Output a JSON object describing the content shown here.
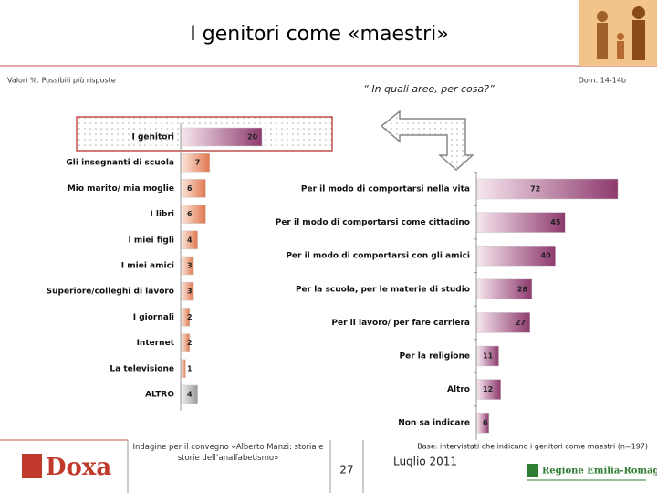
{
  "header": {
    "title": "I genitori come «maestri»",
    "note": "Valori %. Possibili più risposte",
    "question": "“ In quali aree, per cosa?”",
    "ref": "Dom. 14-14b"
  },
  "chart_data": [
    {
      "type": "bar",
      "orientation": "horizontal",
      "categories": [
        "I genitori",
        "Gli insegnanti di scuola",
        "Mio marito/ mia moglie",
        "I libri",
        "I miei figli",
        "I miei amici",
        "Superiore/colleghi di lavoro",
        "I giornali",
        "Internet",
        "La televisione",
        "ALTRO"
      ],
      "values": [
        20,
        7,
        6,
        6,
        4,
        3,
        3,
        2,
        2,
        1,
        4
      ],
      "colors": [
        "#8e3a6e",
        "#e07850",
        "#e07850",
        "#e07850",
        "#e07850",
        "#e07850",
        "#e07850",
        "#e07850",
        "#e07850",
        "#e07850",
        "#9a9a9a"
      ]
    },
    {
      "type": "bar",
      "orientation": "horizontal",
      "categories": [
        "Per il modo di comportarsi nella vita",
        "Per il modo di comportarsi come cittadino",
        "Per il modo di comportarsi con gli amici",
        "Per la scuola, per le materie di studio",
        "Per il lavoro/ per fare carriera",
        "Per la religione",
        "Altro",
        "Non sa indicare"
      ],
      "values": [
        72,
        45,
        40,
        28,
        27,
        11,
        12,
        6
      ],
      "color": "#8e3a6e"
    }
  ],
  "footer": {
    "base": "Base: intervistati che indicano i genitori come maestri (n=197)",
    "survey": "Indagine per il convegno «Alberto Manzi: storia e storie dell’analfabetismo»",
    "page": "27",
    "date": "Luglio 2011",
    "logo_left": "Doxa",
    "logo_right": "Regione Emilia-Romagna"
  }
}
